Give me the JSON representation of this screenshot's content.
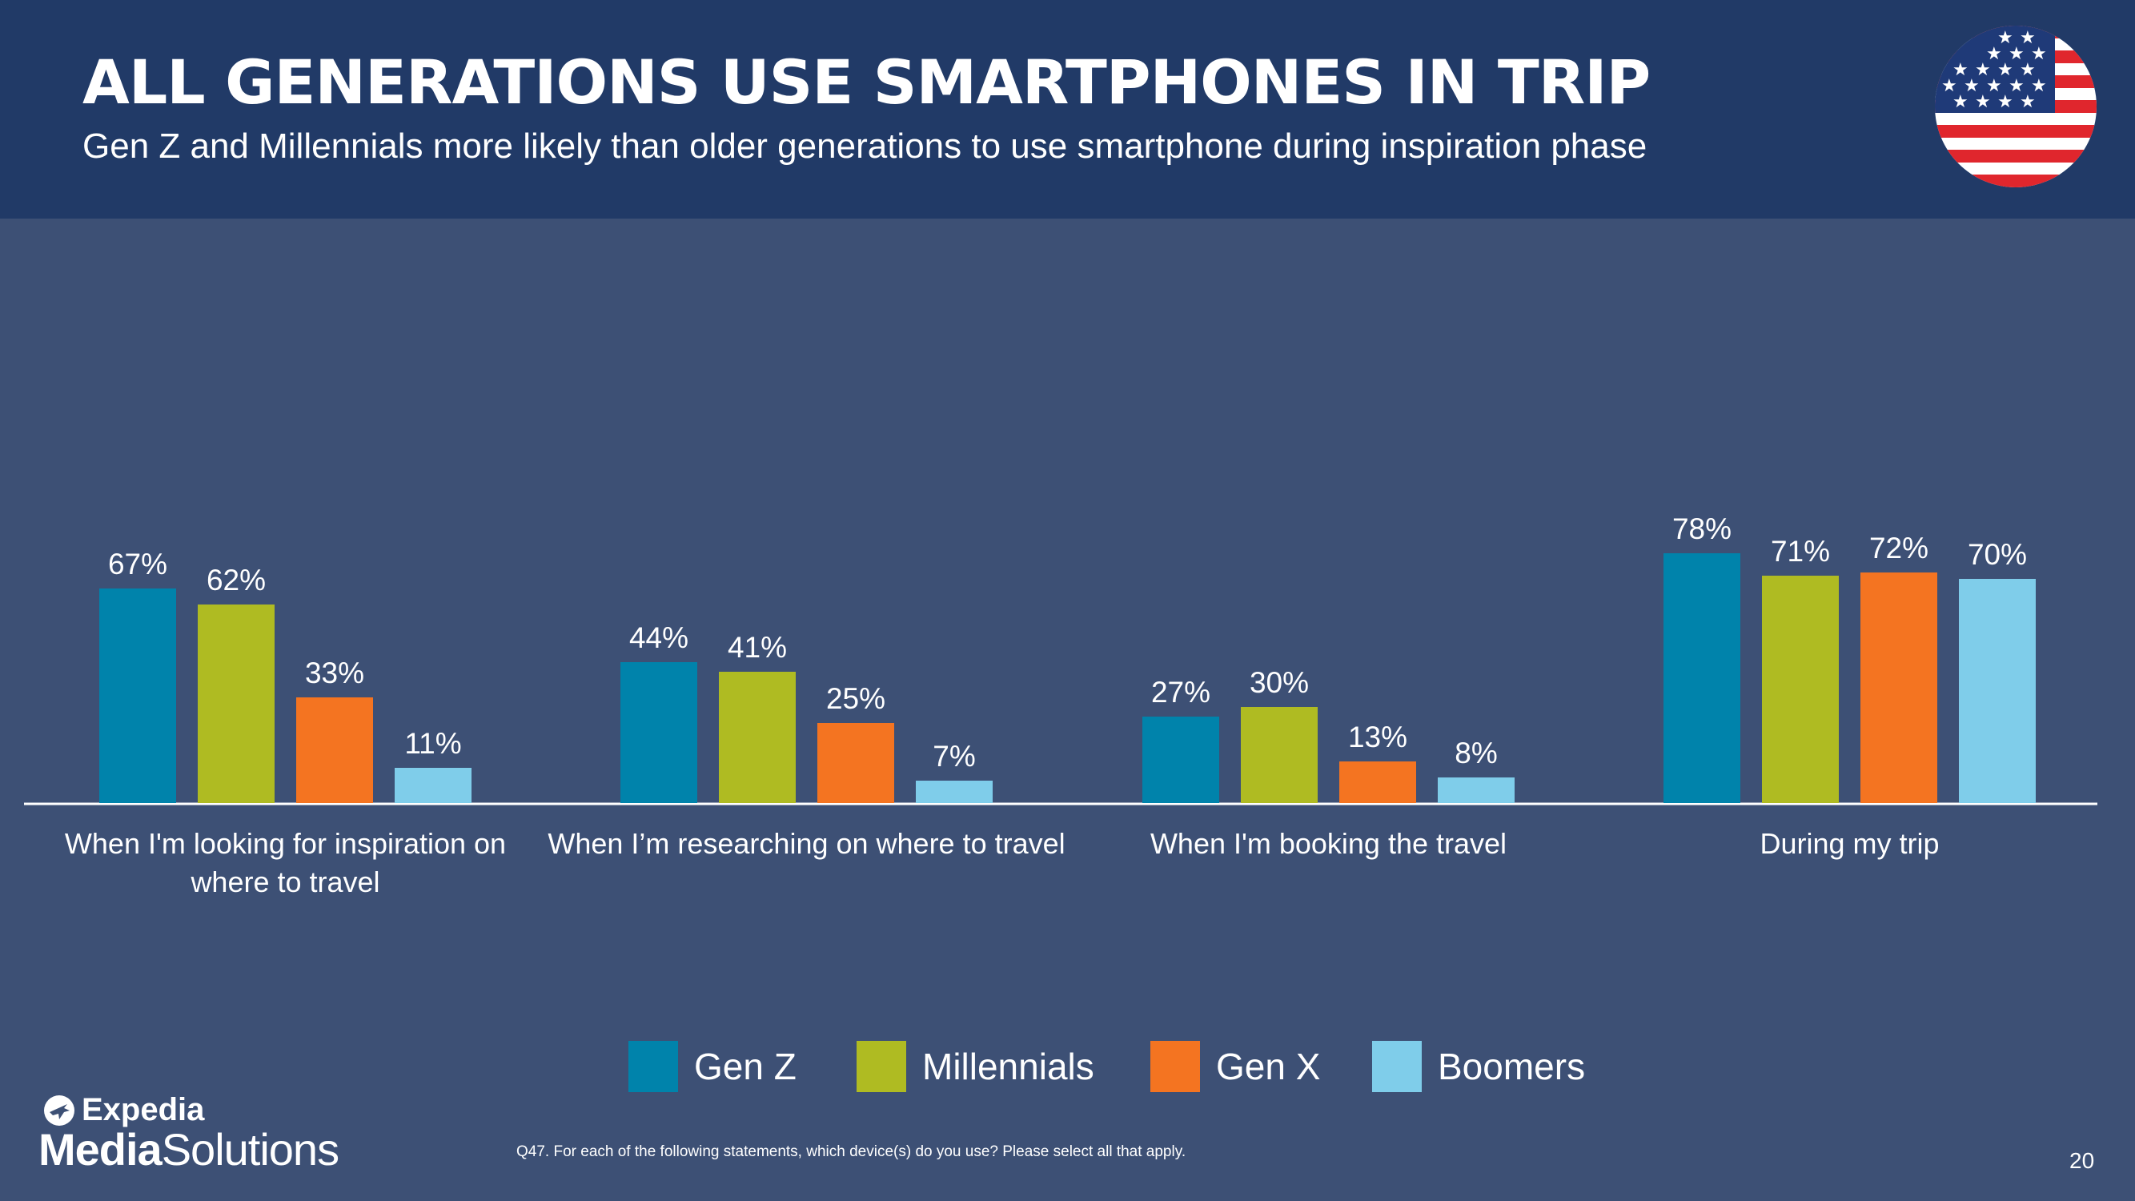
{
  "header": {
    "title": "ALL GENERATIONS USE SMARTPHONES IN TRIP",
    "subtitle": "Gen Z and Millennials more likely than older generations to use smartphone during inspiration phase"
  },
  "flag_icon": "us-flag-icon",
  "colors": {
    "header_bg": "#213a67",
    "slide_bg": "#3d5075",
    "gen_z": "#0083ab",
    "millennials": "#afbb22",
    "gen_x": "#f47421",
    "boomers": "#7fcdea"
  },
  "chart_data": {
    "type": "bar",
    "title": "",
    "xlabel": "",
    "ylabel": "",
    "ylim": [
      0,
      100
    ],
    "categories": [
      [
        "When I'm looking for inspiration on",
        "where to travel"
      ],
      [
        "When I’m researching on where to travel"
      ],
      [
        "When I'm booking the travel"
      ],
      [
        "During my trip"
      ]
    ],
    "series": [
      {
        "name": "Gen Z",
        "color": "#0083ab",
        "values": [
          67,
          44,
          27,
          78
        ]
      },
      {
        "name": "Millennials",
        "color": "#afbb22",
        "values": [
          62,
          41,
          30,
          71
        ]
      },
      {
        "name": "Gen X",
        "color": "#f47421",
        "values": [
          33,
          25,
          13,
          72
        ]
      },
      {
        "name": "Boomers",
        "color": "#7fcdea",
        "values": [
          11,
          7,
          8,
          70
        ]
      }
    ],
    "value_suffix": "%"
  },
  "logo": {
    "line1": "Expedia",
    "line2_bold": "Media",
    "line2_regular": "Solutions"
  },
  "footnote": "Q47. For each of the following statements, which device(s) do you use? Please select all that apply.",
  "page_number": "20"
}
